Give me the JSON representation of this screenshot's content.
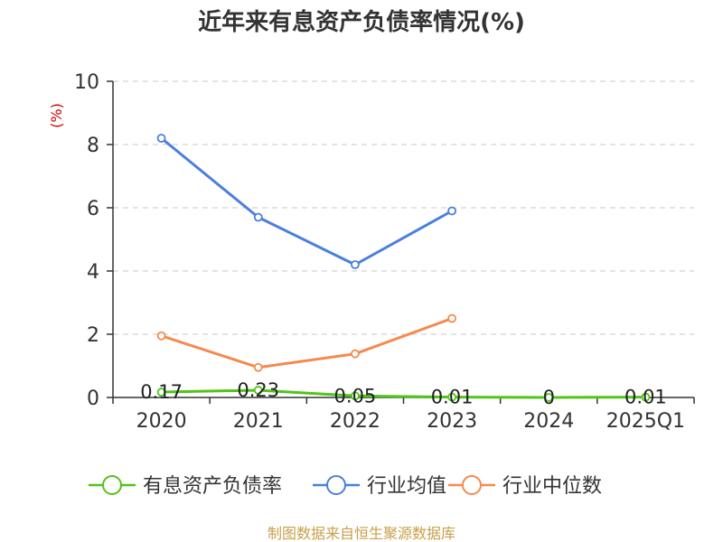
{
  "chart_data": {
    "type": "line",
    "title": "近年来有息资产负债率情况(%)",
    "ylabel": "(%)",
    "xlabel": "",
    "categories": [
      "2020",
      "2021",
      "2022",
      "2023",
      "2024",
      "2025Q1"
    ],
    "ylim": [
      0,
      10
    ],
    "yticks": [
      0,
      2,
      4,
      6,
      8,
      10
    ],
    "grid": true,
    "legend_position": "bottom",
    "series": [
      {
        "name": "有息资产负债率",
        "color": "#52c41a",
        "values": [
          0.17,
          0.23,
          0.05,
          0.01,
          0,
          0.01
        ],
        "labels": [
          "0.17",
          "0.23",
          "0.05",
          "0.01",
          "0",
          "0.01"
        ]
      },
      {
        "name": "行业均值",
        "color": "#4a7fdc",
        "values": [
          8.2,
          5.7,
          4.2,
          5.9,
          null,
          null
        ]
      },
      {
        "name": "行业中位数",
        "color": "#f5894f",
        "values": [
          1.95,
          0.95,
          1.38,
          2.5,
          null,
          null
        ]
      }
    ]
  },
  "source_text": "制图数据来自恒生聚源数据库"
}
